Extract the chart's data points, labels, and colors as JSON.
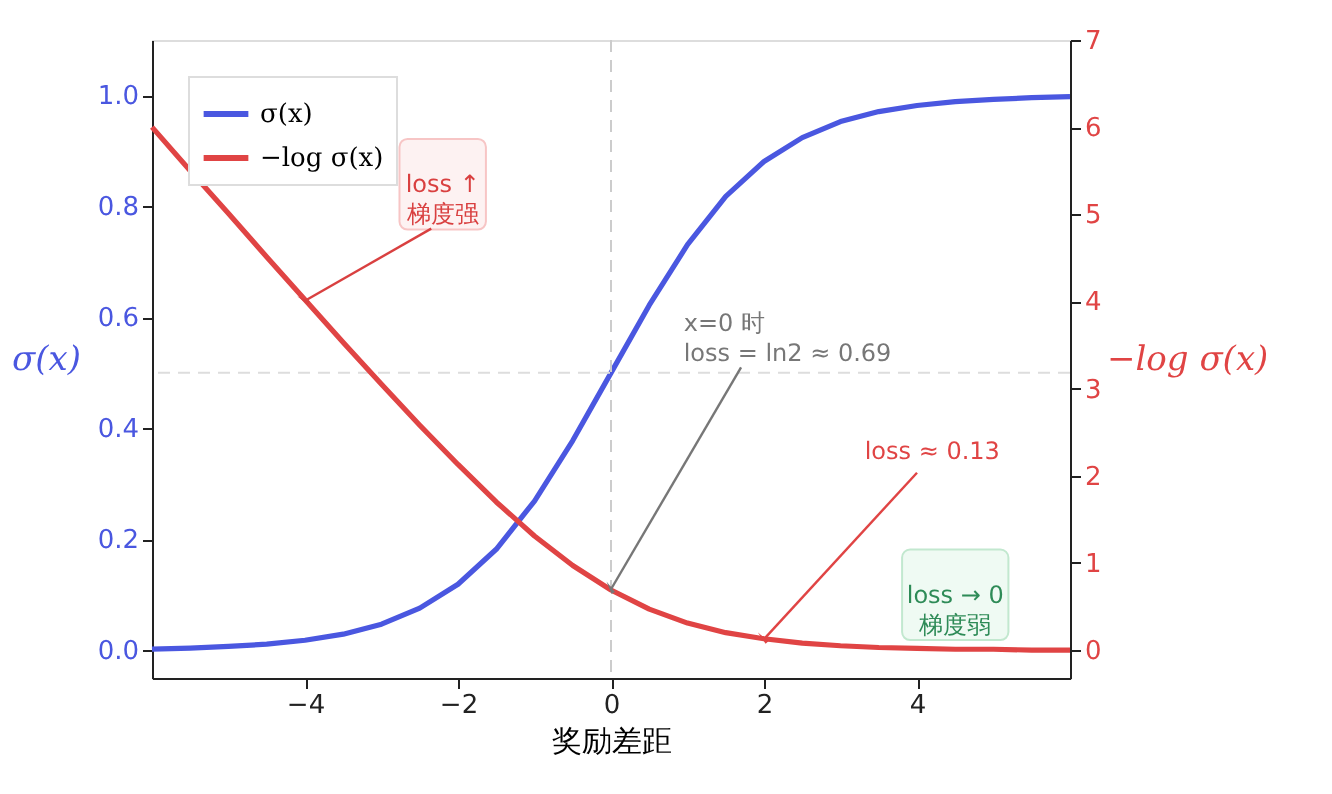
{
  "chart_data": {
    "type": "line",
    "xlabel": "奖励差距",
    "ylabel": "σ(x)",
    "y2label": "−log σ(x)",
    "x": [
      -6,
      -5.5,
      -5,
      -4.5,
      -4,
      -3.5,
      -3,
      -2.5,
      -2,
      -1.5,
      -1,
      -0.5,
      0,
      0.5,
      1,
      1.5,
      2,
      2.5,
      3,
      3.5,
      4,
      4.5,
      5,
      5.5,
      6
    ],
    "series": [
      {
        "name": "σ(x)",
        "color": "#4a57e0",
        "values": [
          0.002,
          0.004,
          0.007,
          0.011,
          0.018,
          0.029,
          0.047,
          0.076,
          0.119,
          0.182,
          0.269,
          0.378,
          0.5,
          0.622,
          0.731,
          0.818,
          0.881,
          0.924,
          0.953,
          0.971,
          0.982,
          0.989,
          0.993,
          0.996,
          0.998
        ]
      },
      {
        "name": "−log σ(x)",
        "color": "#e04444",
        "axis": "y2",
        "values": [
          6.0,
          5.5,
          5.01,
          4.51,
          4.02,
          3.53,
          3.05,
          2.58,
          2.13,
          1.7,
          1.31,
          0.97,
          0.69,
          0.47,
          0.31,
          0.2,
          0.13,
          0.08,
          0.05,
          0.03,
          0.02,
          0.01,
          0.01,
          0.0,
          0.0
        ]
      }
    ],
    "xlim": [
      -6,
      6
    ],
    "xticks": [
      {
        "value": -4,
        "label": "−4"
      },
      {
        "value": -2,
        "label": "−2"
      },
      0,
      2,
      4
    ],
    "ylim": [
      -0.05,
      1.1
    ],
    "yticks": [
      {
        "value": 0,
        "label": "0.0"
      },
      0.2,
      0.4,
      0.6,
      0.8,
      {
        "value": 1,
        "label": "1.0"
      }
    ],
    "y2lim": [
      -0.32,
      7
    ],
    "y2ticks": [
      0,
      1,
      2,
      3,
      4,
      5,
      6,
      7
    ],
    "ref_lines": [
      {
        "axis": "x",
        "value": 0,
        "color": "#cccccc",
        "line_style": "dashed"
      },
      {
        "axis": "y",
        "value": 0.5,
        "color": "#dddddd",
        "line_style": "dashed"
      }
    ],
    "annotations": [
      {
        "text": "loss ↑\n梯度强",
        "x": -4,
        "y": 0.63
      },
      {
        "text": "x=0 时\nloss = ln2 ≈ 0.69",
        "x": 0,
        "y": 0.11
      },
      {
        "text": "loss ≈ 0.13",
        "x": 2,
        "y": 0.02
      },
      "loss → 0\n梯度弱"
    ],
    "legend": "top left",
    "grid": false,
    "marker": "none",
    "line_style": "solid"
  }
}
